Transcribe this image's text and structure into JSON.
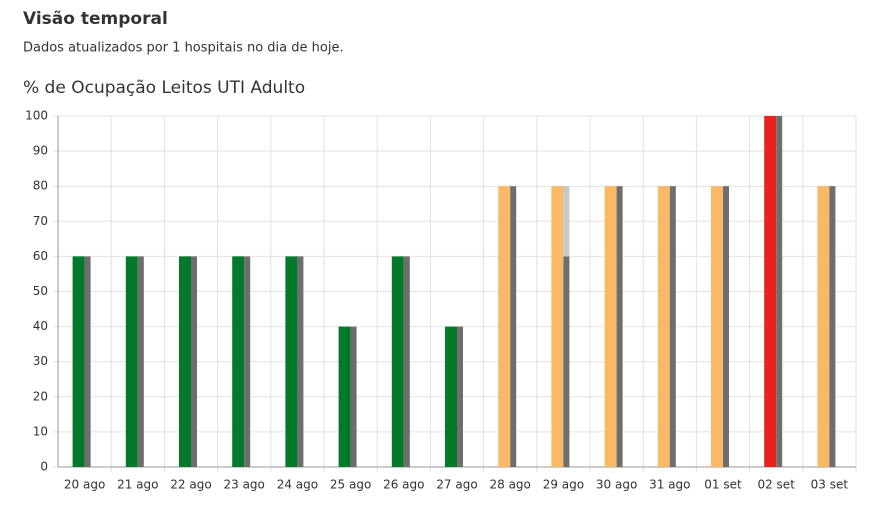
{
  "header": {
    "title": "Visão temporal",
    "subtitle": "Dados atualizados por 1 hospitais no dia de hoje."
  },
  "chart_data": {
    "type": "bar",
    "title": "% de Ocupação Leitos UTI Adulto",
    "categories": [
      "20 ago",
      "21 ago",
      "22 ago",
      "23 ago",
      "24 ago",
      "25 ago",
      "26 ago",
      "27 ago",
      "28 ago",
      "29 ago",
      "30 ago",
      "31 ago",
      "01 set",
      "02 set",
      "03 set"
    ],
    "series": [
      {
        "values": [
          60,
          60,
          60,
          60,
          60,
          40,
          60,
          40,
          80,
          80,
          80,
          80,
          80,
          100,
          80
        ],
        "colors": [
          "#04782b",
          "#04782b",
          "#04782b",
          "#04782b",
          "#04782b",
          "#04782b",
          "#04782b",
          "#04782b",
          "#fbb867",
          "#fbb867",
          "#fbb867",
          "#fbb867",
          "#fbb867",
          "#e8221c",
          "#fbb867"
        ]
      },
      {
        "values": [
          60,
          60,
          60,
          60,
          60,
          40,
          60,
          40,
          80,
          60,
          80,
          80,
          80,
          100,
          80
        ],
        "color": "#6e6e6e"
      },
      {
        "values": [
          null,
          null,
          null,
          null,
          null,
          null,
          null,
          null,
          null,
          20,
          null,
          null,
          null,
          null,
          null
        ],
        "color": "#c8c8c8",
        "stacked_on": 1
      }
    ],
    "ylim": [
      0,
      100
    ],
    "yticks": [
      0,
      10,
      20,
      30,
      40,
      50,
      60,
      70,
      80,
      90,
      100
    ],
    "grid": true
  }
}
